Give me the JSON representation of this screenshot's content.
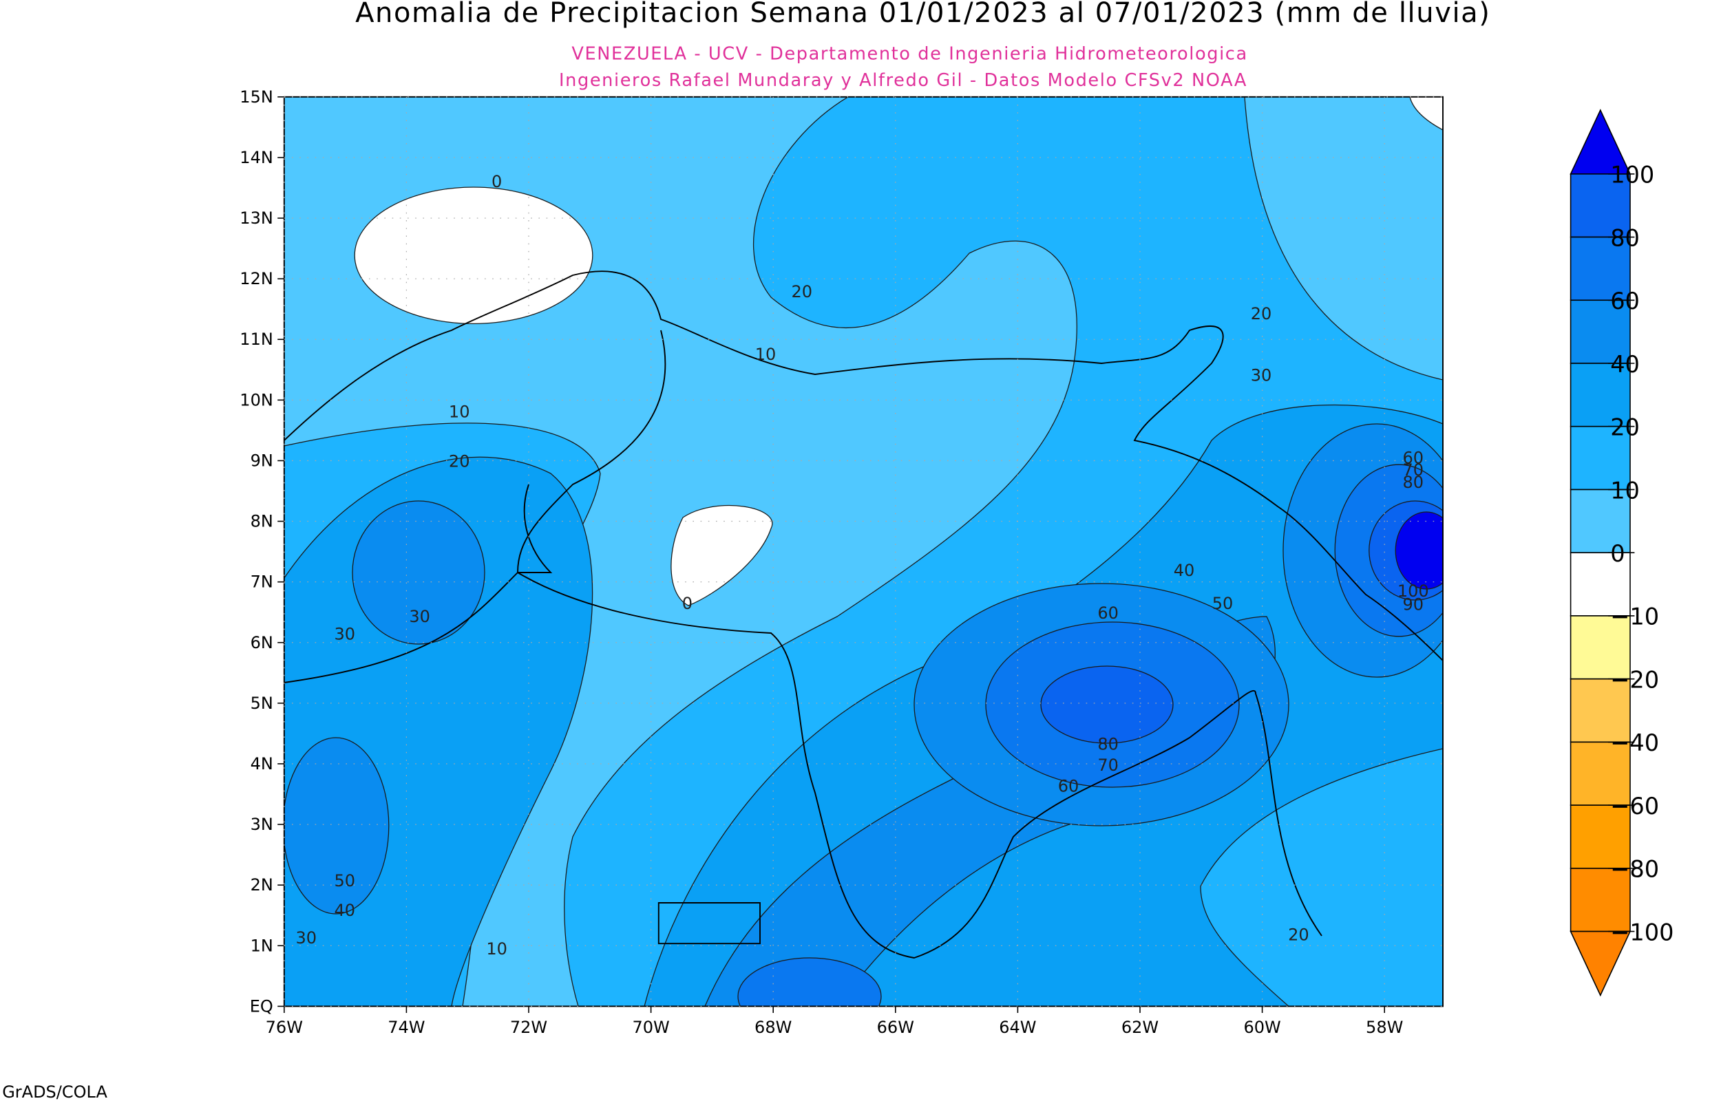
{
  "title": "Anomalia de Precipitacion Semana 01/01/2023 al 07/01/2023 (mm de lluvia)",
  "subtitle_1": "VENEZUELA - UCV - Departamento de Ingenieria Hidrometeorologica",
  "subtitle_2": "Ingenieros Rafael Mundaray y Alfredo Gil - Datos Modelo CFSv2 NOAA",
  "lat_ticks": [
    "15N",
    "14N",
    "13N",
    "12N",
    "11N",
    "10N",
    "9N",
    "8N",
    "7N",
    "6N",
    "5N",
    "4N",
    "3N",
    "2N",
    "1N",
    "EQ"
  ],
  "lon_ticks": [
    "76W",
    "74W",
    "72W",
    "70W",
    "68W",
    "66W",
    "64W",
    "62W",
    "60W",
    "58W"
  ],
  "colorbar": {
    "labels": [
      "100",
      "80",
      "60",
      "40",
      "20",
      "10",
      "0",
      "−10",
      "−20",
      "−40",
      "−60",
      "−80",
      "−100"
    ],
    "colors": [
      "#0000f0",
      "#0a64f0",
      "#0a78f0",
      "#0a8cf0",
      "#0aa0f5",
      "#1eb4ff",
      "#50c8ff",
      "#ffffff",
      "#fffa96",
      "#ffc850",
      "#ffb428",
      "#ffa000",
      "#ff8c00",
      "#ff8200"
    ]
  },
  "contour_labels": [
    "0",
    "20",
    "10",
    "20",
    "30",
    "10",
    "20",
    "30",
    "0",
    "60",
    "70",
    "80",
    "40",
    "50",
    "100",
    "90",
    "60",
    "80",
    "70",
    "60",
    "30",
    "50",
    "40",
    "30",
    "10",
    "20"
  ],
  "footer": "GrADS/COLA"
}
